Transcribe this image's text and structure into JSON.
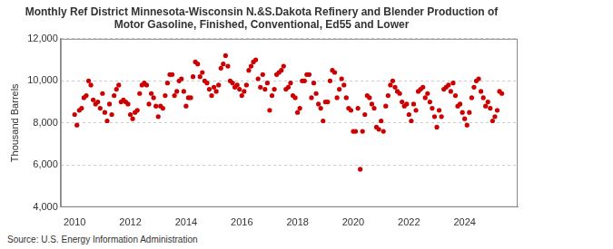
{
  "chart_data": {
    "type": "scatter",
    "title": [
      "Monthly Ref District Minnesota-Wisconsin N.&S.Dakota Refinery and Blender Production of",
      "Motor Gasoline, Finished, Conventional, Ed55 and Lower"
    ],
    "y_label": "Thousand Barrels",
    "source": "Source: U.S. Energy Information Administration",
    "color": "#cc0000",
    "marker": "circle",
    "grid": true,
    "xlim": [
      2009.5,
      2025.9
    ],
    "xticks": [
      2010,
      2012,
      2014,
      2016,
      2018,
      2020,
      2022,
      2024
    ],
    "ylim": [
      4000,
      12000
    ],
    "yticks": [
      {
        "value": 4000,
        "label": "4,000"
      },
      {
        "value": 6000,
        "label": "6,000"
      },
      {
        "value": 8000,
        "label": "8,000"
      },
      {
        "value": 10000,
        "label": "10,000"
      },
      {
        "value": 12000,
        "label": "12,000"
      }
    ],
    "x": [
      2010,
      2010.083,
      2010.167,
      2010.25,
      2010.333,
      2010.417,
      2010.5,
      2010.583,
      2010.667,
      2010.75,
      2010.833,
      2010.917,
      2011,
      2011.083,
      2011.167,
      2011.25,
      2011.333,
      2011.417,
      2011.5,
      2011.583,
      2011.667,
      2011.75,
      2011.833,
      2011.917,
      2012,
      2012.083,
      2012.167,
      2012.25,
      2012.333,
      2012.417,
      2012.5,
      2012.583,
      2012.667,
      2012.75,
      2012.833,
      2012.917,
      2013,
      2013.083,
      2013.167,
      2013.25,
      2013.333,
      2013.417,
      2013.5,
      2013.583,
      2013.667,
      2013.75,
      2013.833,
      2013.917,
      2014,
      2014.083,
      2014.167,
      2014.25,
      2014.333,
      2014.417,
      2014.5,
      2014.583,
      2014.667,
      2014.75,
      2014.833,
      2014.917,
      2015,
      2015.083,
      2015.167,
      2015.25,
      2015.333,
      2015.417,
      2015.5,
      2015.583,
      2015.667,
      2015.75,
      2015.833,
      2015.917,
      2016,
      2016.083,
      2016.167,
      2016.25,
      2016.333,
      2016.417,
      2016.5,
      2016.583,
      2016.667,
      2016.75,
      2016.833,
      2016.917,
      2017,
      2017.083,
      2017.167,
      2017.25,
      2017.333,
      2017.417,
      2017.5,
      2017.583,
      2017.667,
      2017.75,
      2017.833,
      2017.917,
      2018,
      2018.083,
      2018.167,
      2018.25,
      2018.333,
      2018.417,
      2018.5,
      2018.583,
      2018.667,
      2018.75,
      2018.833,
      2018.917,
      2019,
      2019.083,
      2019.167,
      2019.25,
      2019.333,
      2019.417,
      2019.5,
      2019.583,
      2019.667,
      2019.75,
      2019.833,
      2019.917,
      2020,
      2020.083,
      2020.167,
      2020.25,
      2020.333,
      2020.417,
      2020.5,
      2020.583,
      2020.667,
      2020.75,
      2020.833,
      2020.917,
      2021,
      2021.083,
      2021.167,
      2021.25,
      2021.333,
      2021.417,
      2021.5,
      2021.583,
      2021.667,
      2021.75,
      2021.833,
      2021.917,
      2022,
      2022.083,
      2022.167,
      2022.25,
      2022.333,
      2022.417,
      2022.5,
      2022.583,
      2022.667,
      2022.75,
      2022.833,
      2022.917,
      2023,
      2023.083,
      2023.167,
      2023.25,
      2023.333,
      2023.417,
      2023.5,
      2023.583,
      2023.667,
      2023.75,
      2023.833,
      2023.917,
      2024,
      2024.083,
      2024.167,
      2024.25,
      2024.333,
      2024.417,
      2024.5,
      2024.583,
      2024.667,
      2024.75,
      2024.833,
      2024.917,
      2025,
      2025.083,
      2025.167,
      2025.25,
      2025.333
    ],
    "values": [
      8400,
      7900,
      8600,
      8700,
      9200,
      9300,
      10000,
      9800,
      9100,
      8900,
      9000,
      8700,
      9400,
      8500,
      8100,
      8900,
      8400,
      9300,
      9600,
      9800,
      9000,
      9100,
      9000,
      8900,
      8400,
      8200,
      8500,
      8600,
      9400,
      9800,
      9900,
      9800,
      8900,
      9400,
      9200,
      8800,
      8300,
      8800,
      8700,
      9300,
      9900,
      10300,
      10300,
      9300,
      9500,
      10000,
      10100,
      9500,
      8800,
      9200,
      9200,
      10200,
      10900,
      10800,
      10200,
      10400,
      10000,
      9900,
      9600,
      9300,
      9700,
      9500,
      9800,
      10600,
      10800,
      11200,
      10700,
      10000,
      9900,
      9700,
      9800,
      9600,
      9300,
      9500,
      9800,
      10500,
      10700,
      10900,
      11000,
      10100,
      9700,
      10300,
      9600,
      9900,
      8600,
      9300,
      9600,
      10300,
      10400,
      10500,
      10700,
      9600,
      9700,
      9900,
      9300,
      9200,
      8500,
      8700,
      10000,
      10000,
      10300,
      10300,
      9200,
      9900,
      9400,
      8900,
      8700,
      8100,
      9000,
      9000,
      10000,
      10500,
      10400,
      9200,
      9600,
      10100,
      9800,
      9200,
      8700,
      8600,
      7600,
      7600,
      8700,
      5800,
      7600,
      8400,
      9300,
      9200,
      8900,
      8700,
      7800,
      7700,
      8100,
      7600,
      8800,
      9300,
      9800,
      10000,
      9700,
      9500,
      9400,
      9000,
      8800,
      8900,
      8400,
      8100,
      8900,
      8600,
      9500,
      9600,
      9700,
      9200,
      9400,
      9000,
      8700,
      8300,
      7800,
      8600,
      8300,
      9600,
      9700,
      9800,
      9500,
      9900,
      9300,
      8800,
      8900,
      8500,
      8200,
      7900,
      8500,
      9200,
      9700,
      10000,
      10100,
      9500,
      9200,
      8800,
      9000,
      8700,
      8100,
      8300,
      8600,
      9500,
      9400
    ]
  }
}
